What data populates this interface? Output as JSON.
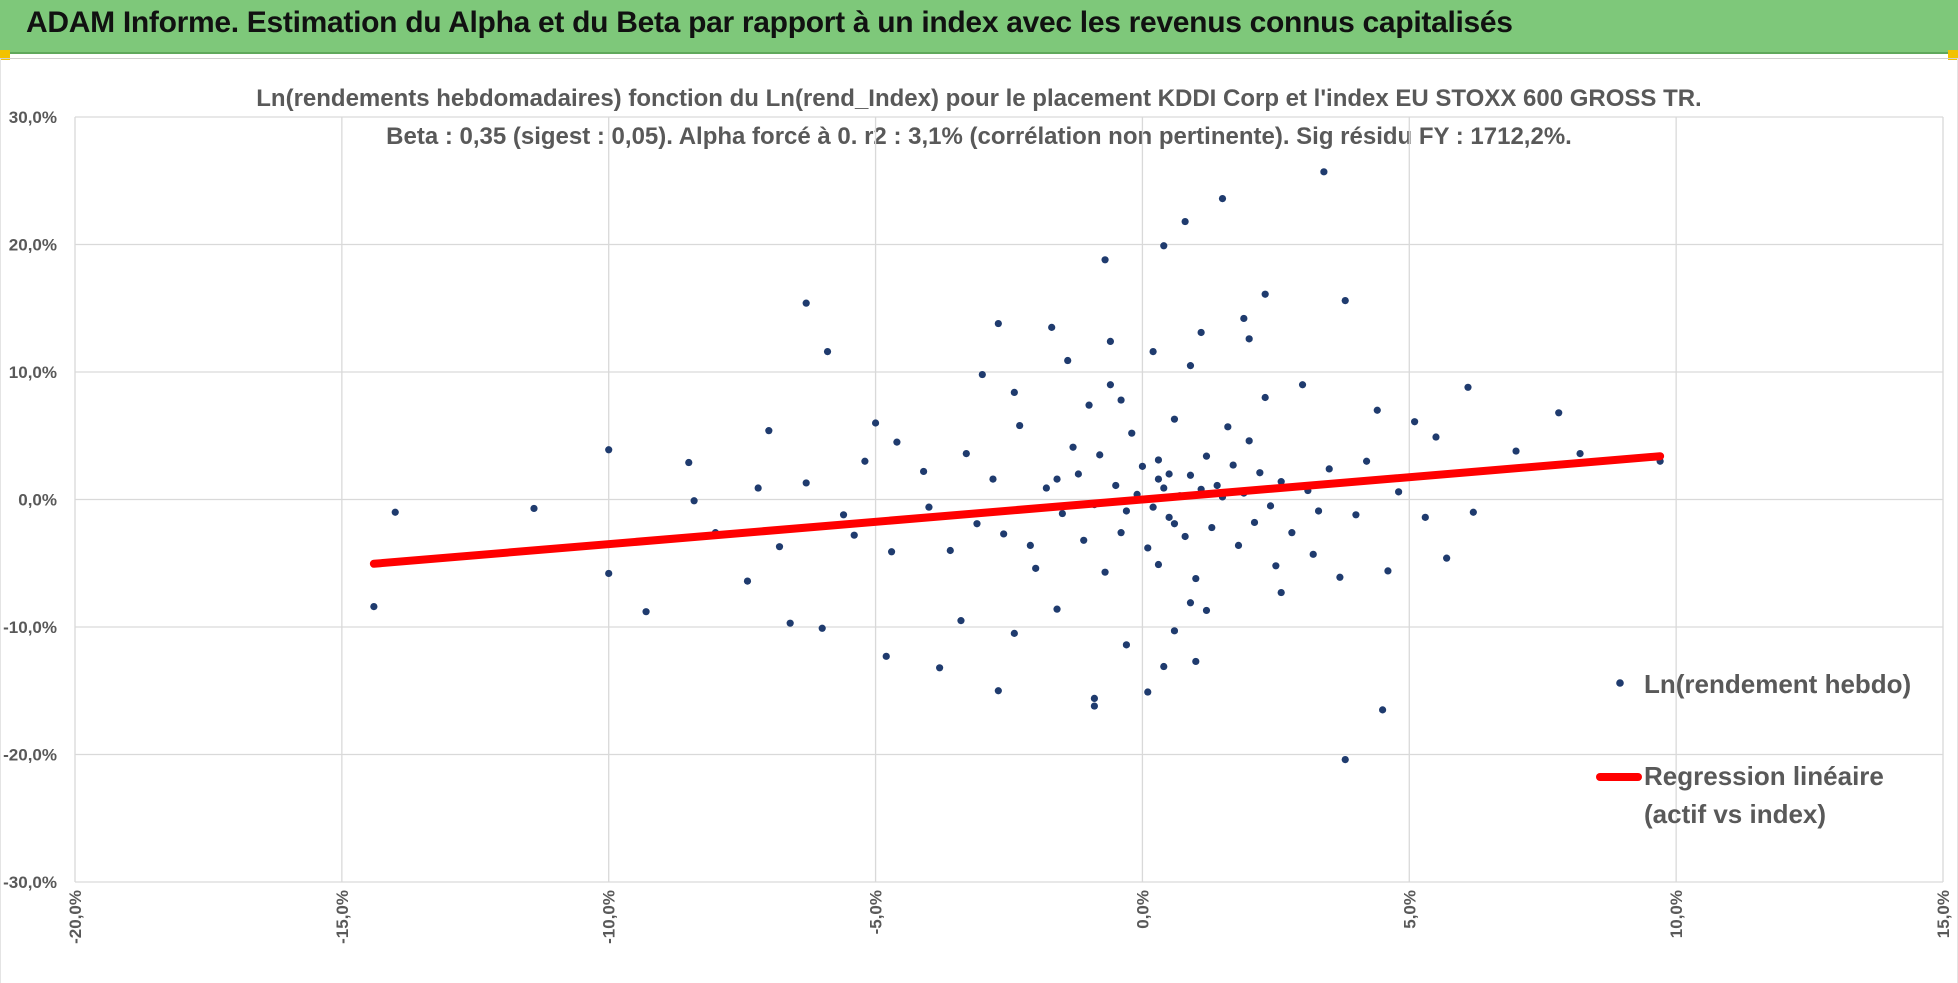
{
  "header": {
    "title": "ADAM Informe. Estimation du Alpha et du Beta par rapport à un index avec les revenus connus capitalisés"
  },
  "colors": {
    "banner": "#7ec87a",
    "points": "#1f3b6e",
    "regression": "#ff0000",
    "grid": "#d9d9d9",
    "text": "#595959"
  },
  "chart_data": {
    "type": "scatter",
    "title_lines": [
      "Ln(rendements hebdomadaires) fonction du Ln(rend_Index) pour le placement KDDI Corp et l'index EU STOXX 600 GROSS TR.",
      "Beta : 0,35 (sigest : 0,05).  Alpha forcé à 0. r2 : 3,1% (corrélation non pertinente). Sig résidu FY : 1712,2%."
    ],
    "xlim": [
      -20,
      15
    ],
    "ylim": [
      -30,
      30
    ],
    "x_ticks": [
      "-20,0%",
      "-15,0%",
      "-10,0%",
      "-5,0%",
      "0,0%",
      "5,0%",
      "10,0%",
      "15,0%"
    ],
    "y_ticks": [
      "30,0%",
      "20,0%",
      "10,0%",
      "0,0%",
      "-10,0%",
      "-20,0%",
      "-30,0%"
    ],
    "grid": true,
    "legend_position": "right",
    "series": [
      {
        "name": "Ln(rendement hebdo)",
        "kind": "points",
        "points": [
          [
            3.4,
            25.7
          ],
          [
            1.5,
            23.6
          ],
          [
            0.8,
            21.8
          ],
          [
            0.4,
            19.9
          ],
          [
            -0.7,
            18.8
          ],
          [
            -6.3,
            15.4
          ],
          [
            3.8,
            15.6
          ],
          [
            2.3,
            16.1
          ],
          [
            -5.9,
            11.6
          ],
          [
            -2.7,
            13.8
          ],
          [
            -1.7,
            13.5
          ],
          [
            1.1,
            13.1
          ],
          [
            1.9,
            14.2
          ],
          [
            -0.6,
            12.4
          ],
          [
            2.0,
            12.6
          ],
          [
            -14.0,
            -1.0
          ],
          [
            -11.4,
            -0.7
          ],
          [
            -10.0,
            3.9
          ],
          [
            -8.5,
            2.9
          ],
          [
            -8.4,
            -0.1
          ],
          [
            -7.0,
            5.4
          ],
          [
            -6.3,
            1.3
          ],
          [
            -5.0,
            6.0
          ],
          [
            -4.6,
            4.5
          ],
          [
            -10.0,
            -5.8
          ],
          [
            -9.3,
            -8.8
          ],
          [
            -7.4,
            -6.4
          ],
          [
            -6.6,
            -9.7
          ],
          [
            -6.0,
            -10.1
          ],
          [
            -14.4,
            -8.4
          ],
          [
            -4.8,
            -12.3
          ],
          [
            -3.8,
            -13.2
          ],
          [
            -2.7,
            -15.0
          ],
          [
            -0.9,
            -15.6
          ],
          [
            -0.9,
            -16.2
          ],
          [
            0.1,
            -15.1
          ],
          [
            0.4,
            -13.1
          ],
          [
            1.0,
            -12.7
          ],
          [
            3.8,
            -20.4
          ],
          [
            4.5,
            -16.5
          ],
          [
            5.1,
            6.1
          ],
          [
            5.5,
            4.9
          ],
          [
            6.1,
            8.8
          ],
          [
            7.8,
            6.8
          ],
          [
            7.0,
            3.8
          ],
          [
            8.2,
            3.6
          ],
          [
            9.7,
            3.0
          ],
          [
            6.2,
            -1.0
          ],
          [
            5.7,
            -4.6
          ],
          [
            4.6,
            -5.6
          ],
          [
            4.2,
            3.0
          ],
          [
            4.4,
            7.0
          ],
          [
            -3.0,
            9.8
          ],
          [
            -2.4,
            8.4
          ],
          [
            -1.4,
            10.9
          ],
          [
            -1.0,
            7.4
          ],
          [
            -0.6,
            9.0
          ],
          [
            0.2,
            11.6
          ],
          [
            0.9,
            10.5
          ],
          [
            2.3,
            8.0
          ],
          [
            3.0,
            9.0
          ],
          [
            2.6,
            -7.3
          ],
          [
            3.2,
            -4.3
          ],
          [
            3.7,
            -6.1
          ],
          [
            -3.4,
            -9.5
          ],
          [
            -2.4,
            -10.5
          ],
          [
            -1.6,
            -8.6
          ],
          [
            -0.3,
            -11.4
          ],
          [
            0.6,
            -10.3
          ],
          [
            1.2,
            -8.7
          ],
          [
            -4.1,
            2.2
          ],
          [
            -3.6,
            -4.0
          ],
          [
            -2.1,
            -3.6
          ],
          [
            -1.2,
            2.0
          ],
          [
            -0.4,
            -2.6
          ],
          [
            0.3,
            3.1
          ],
          [
            0.5,
            -1.4
          ],
          [
            0.9,
            1.9
          ],
          [
            1.3,
            -2.2
          ],
          [
            1.7,
            2.7
          ],
          [
            2.1,
            -1.8
          ],
          [
            2.6,
            1.4
          ],
          [
            -0.1,
            0.4
          ],
          [
            0.7,
            0.3
          ],
          [
            1.1,
            0.8
          ],
          [
            -0.5,
            1.1
          ],
          [
            0.2,
            -0.6
          ],
          [
            0.4,
            0.9
          ],
          [
            1.5,
            0.2
          ],
          [
            -0.9,
            -0.4
          ],
          [
            -1.8,
            0.9
          ],
          [
            -2.8,
            1.6
          ],
          [
            -3.1,
            -1.9
          ],
          [
            2.4,
            -0.5
          ],
          [
            3.1,
            0.7
          ],
          [
            -0.2,
            5.2
          ],
          [
            0.6,
            6.3
          ],
          [
            1.6,
            5.7
          ],
          [
            -1.3,
            4.1
          ],
          [
            0.3,
            -5.1
          ],
          [
            1.0,
            -6.2
          ],
          [
            -0.7,
            -5.7
          ],
          [
            2.0,
            4.6
          ],
          [
            -2.0,
            -5.4
          ],
          [
            3.5,
            2.4
          ],
          [
            -5.4,
            -2.8
          ],
          [
            -4.7,
            -4.1
          ],
          [
            4.0,
            -1.2
          ],
          [
            4.8,
            0.6
          ],
          [
            5.3,
            -1.4
          ],
          [
            -7.2,
            0.9
          ],
          [
            -8.0,
            -2.6
          ],
          [
            -6.8,
            -3.7
          ],
          [
            -5.6,
            -1.2
          ],
          [
            -5.2,
            3.0
          ],
          [
            -4.0,
            -0.6
          ],
          [
            -3.3,
            3.6
          ],
          [
            -2.6,
            -2.7
          ],
          [
            -1.5,
            -1.1
          ],
          [
            -1.1,
            -3.2
          ],
          [
            0.0,
            2.6
          ],
          [
            0.5,
            2.0
          ],
          [
            0.8,
            -2.9
          ],
          [
            1.2,
            3.4
          ],
          [
            1.8,
            -3.6
          ],
          [
            2.2,
            2.1
          ],
          [
            2.8,
            -2.6
          ],
          [
            3.3,
            -0.9
          ],
          [
            -0.4,
            7.8
          ],
          [
            0.9,
            -8.1
          ],
          [
            -2.3,
            5.8
          ],
          [
            2.5,
            -5.2
          ],
          [
            -0.8,
            3.5
          ],
          [
            0.1,
            -3.8
          ],
          [
            1.4,
            1.1
          ],
          [
            -1.6,
            1.6
          ],
          [
            0.6,
            -1.9
          ],
          [
            1.9,
            0.5
          ],
          [
            -0.3,
            -0.9
          ],
          [
            0.3,
            1.6
          ]
        ]
      },
      {
        "name": "Regression linéaire (actif vs index)",
        "name_lines": [
          "Regression linéaire",
          "(actif vs index)"
        ],
        "kind": "line",
        "beta": 0.35,
        "x_range": [
          -14.4,
          9.7
        ]
      }
    ]
  }
}
